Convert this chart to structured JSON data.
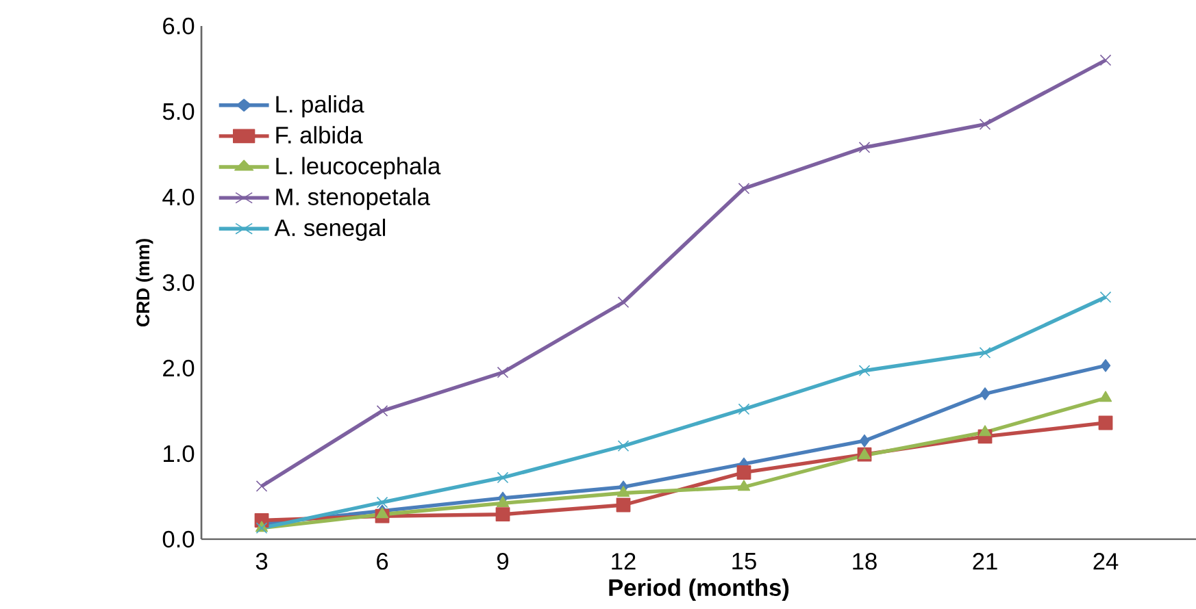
{
  "chart_data": {
    "type": "line",
    "xlabel": "Period (months)",
    "ylabel": "CRD (mm)",
    "categories": [
      "3",
      "6",
      "9",
      "12",
      "15",
      "18",
      "21",
      "24"
    ],
    "series": [
      {
        "name": "L. palida",
        "color": "#4a7ebb",
        "marker": "diamond",
        "values": [
          0.18,
          0.33,
          0.48,
          0.61,
          0.88,
          1.15,
          1.7,
          2.03
        ]
      },
      {
        "name": "F. albida",
        "color": "#be4b48",
        "marker": "square",
        "values": [
          0.22,
          0.27,
          0.29,
          0.4,
          0.78,
          0.99,
          1.2,
          1.36
        ]
      },
      {
        "name": "L. leucocephala",
        "color": "#98b954",
        "marker": "triangle",
        "values": [
          0.13,
          0.29,
          0.42,
          0.54,
          0.61,
          0.98,
          1.25,
          1.65
        ]
      },
      {
        "name": "M. stenopetala",
        "color": "#7d60a0",
        "marker": "cross",
        "values": [
          0.62,
          1.5,
          1.95,
          2.77,
          4.1,
          4.58,
          4.85,
          5.6
        ]
      },
      {
        "name": "A. senegal",
        "color": "#46aac5",
        "marker": "cross",
        "values": [
          0.13,
          0.43,
          0.72,
          1.09,
          1.52,
          1.97,
          2.18,
          2.83
        ]
      }
    ],
    "ylim": [
      0,
      6
    ],
    "yticks": [
      {
        "value": 0,
        "label": "0.0"
      },
      {
        "value": 1,
        "label": "1.0"
      },
      {
        "value": 2,
        "label": "2.0"
      },
      {
        "value": 3,
        "label": "3.0"
      },
      {
        "value": 4,
        "label": "4.0"
      },
      {
        "value": 5,
        "label": "5.0"
      },
      {
        "value": 6,
        "label": "6.0"
      }
    ],
    "grid": false,
    "legend": "top left",
    "line_style": "solid"
  }
}
